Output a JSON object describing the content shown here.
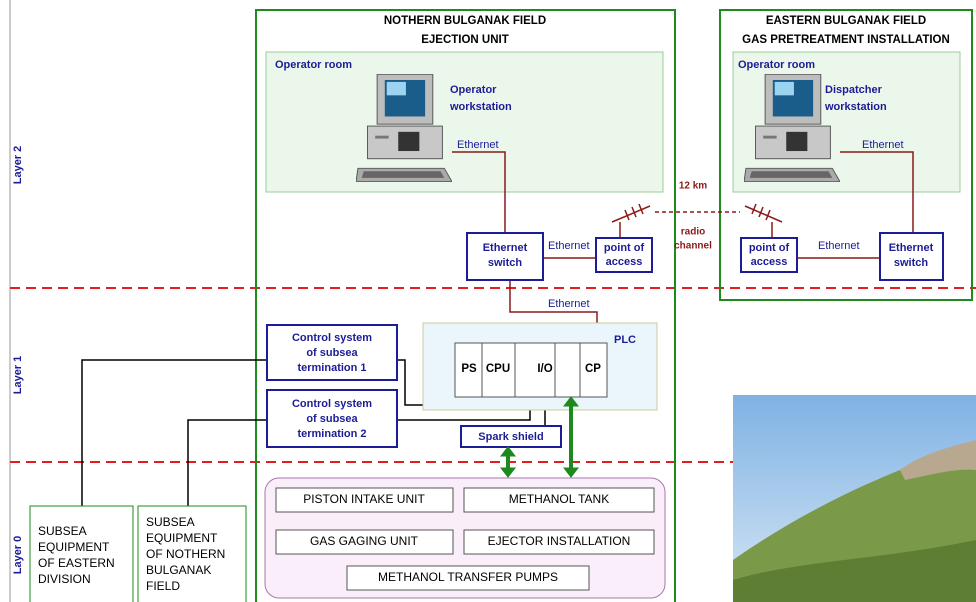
{
  "layers": [
    "Layer 2",
    "Layer 1",
    "Layer 0"
  ],
  "northern": {
    "title": "NOTHERN BULGANAK FIELD",
    "subtitle": "EJECTION UNIT",
    "room": "Operator room",
    "workstation": [
      "Operator",
      "workstation"
    ],
    "ethernet_labels": [
      "Ethernet",
      "Ethernet",
      "Ethernet"
    ],
    "switch": [
      "Ethernet",
      "switch"
    ],
    "access": [
      "point of",
      "access"
    ],
    "plc": {
      "label": "PLC",
      "modules": [
        "PS",
        "CPU",
        "I/O",
        "CP"
      ]
    },
    "control_systems": [
      [
        "Control system",
        "of subsea",
        "termination 1"
      ],
      [
        "Control system",
        "of subsea",
        "termination 2"
      ]
    ],
    "spark_shield": "Spark shield",
    "units": [
      "PISTON INTAKE UNIT",
      "METHANOL TANK",
      "GAS GAGING UNIT",
      "EJECTOR INSTALLATION",
      "METHANOL TRANSFER PUMPS"
    ]
  },
  "radio": {
    "distance": "12 km",
    "label": [
      "radio",
      "channel"
    ]
  },
  "eastern": {
    "title": "EASTERN BULGANAK FIELD",
    "subtitle": "GAS PRETREATMENT INSTALLATION",
    "room": "Operator room",
    "workstation": [
      "Dispatcher",
      "workstation"
    ],
    "ethernet_labels": [
      "Ethernet",
      "Ethernet"
    ],
    "access": [
      "point of",
      "access"
    ],
    "switch": [
      "Ethernet",
      "switch"
    ]
  },
  "subsea": [
    [
      "SUBSEA",
      "EQUIPMENT",
      "OF EASTERN",
      "DIVISION"
    ],
    [
      "SUBSEA",
      "EQUIPMENT",
      "OF NOTHERN",
      "BULGANAK",
      "FIELD"
    ]
  ]
}
